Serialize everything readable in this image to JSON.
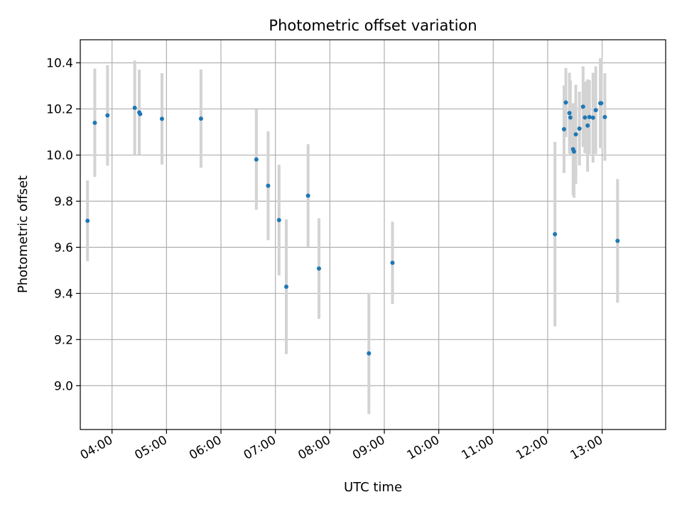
{
  "chart_data": {
    "type": "scatter",
    "title": "Photometric offset variation",
    "xlabel": "UTC time",
    "ylabel": "Photometric offset",
    "x_unit": "hours UTC",
    "xlim": [
      "03:25",
      "14:10"
    ],
    "ylim": [
      8.81,
      10.5
    ],
    "grid": true,
    "x_ticks": [
      "04:00",
      "05:00",
      "06:00",
      "07:00",
      "08:00",
      "09:00",
      "10:00",
      "11:00",
      "12:00",
      "13:00"
    ],
    "y_ticks": [
      9.0,
      9.2,
      9.4,
      9.6,
      9.8,
      10.0,
      10.2,
      10.4
    ],
    "marker_color": "#1f77b4",
    "errorbar_color": "#d3d3d3",
    "points": [
      {
        "t": "03:33",
        "y": 9.715,
        "err": 0.175
      },
      {
        "t": "03:41",
        "y": 10.14,
        "err": 0.235
      },
      {
        "t": "03:55",
        "y": 10.172,
        "err": 0.218
      },
      {
        "t": "04:25",
        "y": 10.205,
        "err": 0.205
      },
      {
        "t": "04:30",
        "y": 10.185,
        "err": 0.185
      },
      {
        "t": "04:31",
        "y": 10.178,
        "err": 0.0
      },
      {
        "t": "04:55",
        "y": 10.157,
        "err": 0.198
      },
      {
        "t": "05:38",
        "y": 10.158,
        "err": 0.213
      },
      {
        "t": "06:39",
        "y": 9.981,
        "err": 0.218
      },
      {
        "t": "06:52",
        "y": 9.867,
        "err": 0.236
      },
      {
        "t": "07:04",
        "y": 9.718,
        "err": 0.24
      },
      {
        "t": "07:12",
        "y": 9.429,
        "err": 0.292
      },
      {
        "t": "07:36",
        "y": 9.824,
        "err": 0.223
      },
      {
        "t": "07:48",
        "y": 9.508,
        "err": 0.218
      },
      {
        "t": "08:43",
        "y": 9.14,
        "err": 0.263
      },
      {
        "t": "09:09",
        "y": 9.533,
        "err": 0.178
      },
      {
        "t": "12:08",
        "y": 9.657,
        "err": 0.4
      },
      {
        "t": "12:18",
        "y": 10.112,
        "err": 0.19
      },
      {
        "t": "12:20",
        "y": 10.228,
        "err": 0.15
      },
      {
        "t": "12:24",
        "y": 10.182,
        "err": 0.175
      },
      {
        "t": "12:25",
        "y": 10.163,
        "err": 0.16
      },
      {
        "t": "12:28",
        "y": 10.025,
        "err": 0.2
      },
      {
        "t": "12:29",
        "y": 10.015,
        "err": 0.2
      },
      {
        "t": "12:31",
        "y": 10.09,
        "err": 0.215
      },
      {
        "t": "12:35",
        "y": 10.115,
        "err": 0.16
      },
      {
        "t": "12:39",
        "y": 10.21,
        "err": 0.175
      },
      {
        "t": "12:41",
        "y": 10.163,
        "err": 0.155
      },
      {
        "t": "12:44",
        "y": 10.128,
        "err": 0.2
      },
      {
        "t": "12:46",
        "y": 10.165,
        "err": 0.16
      },
      {
        "t": "12:50",
        "y": 10.162,
        "err": 0.195
      },
      {
        "t": "12:53",
        "y": 10.195,
        "err": 0.19
      },
      {
        "t": "12:58",
        "y": 10.225,
        "err": 0.195
      },
      {
        "t": "12:59",
        "y": 10.225,
        "err": 0.195
      },
      {
        "t": "13:03",
        "y": 10.165,
        "err": 0.19
      },
      {
        "t": "13:17",
        "y": 9.628,
        "err": 0.268
      }
    ]
  }
}
